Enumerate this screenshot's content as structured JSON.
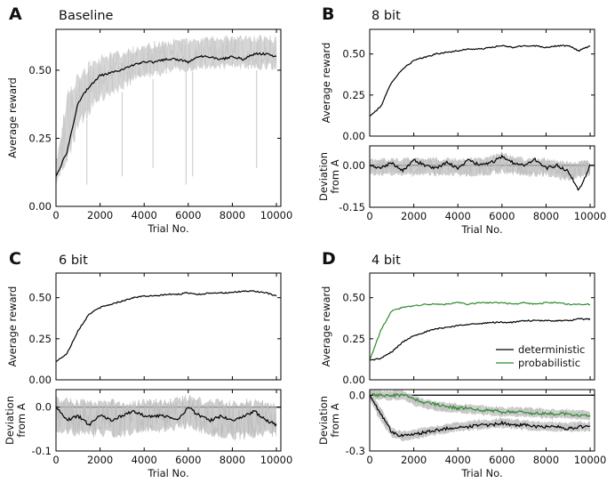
{
  "chart_data": [
    {
      "panel": "A",
      "title": "Baseline",
      "type": "line",
      "xlabel": "Trial No.",
      "xlim": [
        0,
        10200
      ],
      "xticks": [
        0,
        2000,
        4000,
        6000,
        8000,
        10000
      ],
      "plots": [
        {
          "role": "main",
          "ylabel": "Average reward",
          "ylim": [
            0.0,
            0.65
          ],
          "yticks": [
            "0.00",
            "0.25",
            "0.50"
          ],
          "series": [
            {
              "name": "individual runs (gray band)",
              "color": "#c8c8c8",
              "x": [
                0,
                500,
                1000,
                1500,
                2000,
                2500,
                3000,
                3500,
                4000,
                4500,
                5000,
                5500,
                6000,
                6500,
                7000,
                7500,
                8000,
                8500,
                9000,
                9500,
                10000
              ],
              "y_low": [
                0.08,
                0.14,
                0.27,
                0.33,
                0.38,
                0.4,
                0.42,
                0.45,
                0.46,
                0.47,
                0.48,
                0.49,
                0.49,
                0.5,
                0.5,
                0.5,
                0.5,
                0.5,
                0.5,
                0.5,
                0.5
              ],
              "y_high": [
                0.16,
                0.42,
                0.5,
                0.54,
                0.56,
                0.57,
                0.58,
                0.59,
                0.6,
                0.61,
                0.61,
                0.62,
                0.62,
                0.62,
                0.63,
                0.63,
                0.63,
                0.63,
                0.63,
                0.63,
                0.63
              ]
            },
            {
              "name": "mean",
              "color": "#000000",
              "x": [
                0,
                500,
                1000,
                1500,
                2000,
                2500,
                3000,
                3500,
                4000,
                4500,
                5000,
                5500,
                6000,
                6500,
                7000,
                7500,
                8000,
                8500,
                9000,
                9500,
                10000
              ],
              "y": [
                0.11,
                0.2,
                0.38,
                0.44,
                0.48,
                0.49,
                0.5,
                0.52,
                0.53,
                0.53,
                0.54,
                0.54,
                0.53,
                0.55,
                0.55,
                0.54,
                0.55,
                0.54,
                0.56,
                0.56,
                0.55
              ]
            }
          ]
        }
      ]
    },
    {
      "panel": "B",
      "title": "8 bit",
      "type": "line",
      "xlabel": "Trial No.",
      "xlim": [
        0,
        10200
      ],
      "xticks": [
        0,
        2000,
        4000,
        6000,
        8000,
        10000
      ],
      "plots": [
        {
          "role": "main",
          "ylabel": "Average reward",
          "ylim": [
            0.0,
            0.65
          ],
          "yticks": [
            "0.00",
            "0.25",
            "0.50"
          ],
          "series": [
            {
              "name": "8 bit",
              "color": "#000000",
              "x": [
                0,
                500,
                1000,
                1500,
                2000,
                2500,
                3000,
                3500,
                4000,
                4500,
                5000,
                5500,
                6000,
                6500,
                7000,
                7500,
                8000,
                8500,
                9000,
                9500,
                10000
              ],
              "y": [
                0.12,
                0.18,
                0.33,
                0.41,
                0.46,
                0.48,
                0.5,
                0.51,
                0.52,
                0.53,
                0.53,
                0.54,
                0.55,
                0.54,
                0.55,
                0.55,
                0.54,
                0.55,
                0.55,
                0.52,
                0.55
              ]
            }
          ]
        },
        {
          "role": "deviation",
          "ylabel": "Deviation\nfrom A",
          "ylim": [
            -0.15,
            0.07
          ],
          "yticks": [
            "0.00",
            "-0.15"
          ],
          "series": [
            {
              "name": "deviation band",
              "color": "#bdbdbd",
              "x": [
                0,
                1000,
                2000,
                3000,
                4000,
                5000,
                6000,
                7000,
                8000,
                9000,
                10000
              ],
              "y_low": [
                -0.04,
                -0.04,
                -0.04,
                -0.04,
                -0.04,
                -0.04,
                -0.03,
                -0.04,
                -0.04,
                -0.06,
                -0.04
              ],
              "y_high": [
                0.03,
                0.03,
                0.03,
                0.03,
                0.03,
                0.03,
                0.05,
                0.03,
                0.03,
                0.02,
                0.02
              ]
            },
            {
              "name": "deviation",
              "color": "#000000",
              "x": [
                0,
                500,
                1000,
                1500,
                2000,
                2500,
                3000,
                3500,
                4000,
                4500,
                5000,
                5500,
                6000,
                6500,
                7000,
                7500,
                8000,
                8500,
                9000,
                9500,
                10000
              ],
              "y": [
                0.0,
                -0.01,
                0.01,
                -0.02,
                0.02,
                0.0,
                -0.01,
                0.01,
                -0.01,
                0.02,
                0.0,
                0.01,
                0.03,
                0.01,
                0.0,
                0.02,
                -0.01,
                0.0,
                -0.02,
                -0.09,
                0.0
              ]
            }
          ]
        }
      ]
    },
    {
      "panel": "C",
      "title": "6 bit",
      "type": "line",
      "xlabel": "Trial No.",
      "xlim": [
        0,
        10200
      ],
      "xticks": [
        0,
        2000,
        4000,
        6000,
        8000,
        10000
      ],
      "plots": [
        {
          "role": "main",
          "ylabel": "Average reward",
          "ylim": [
            0.0,
            0.65
          ],
          "yticks": [
            "0.00",
            "0.25",
            "0.50"
          ],
          "series": [
            {
              "name": "6 bit",
              "color": "#000000",
              "x": [
                0,
                500,
                1000,
                1500,
                2000,
                2500,
                3000,
                3500,
                4000,
                4500,
                5000,
                5500,
                6000,
                6500,
                7000,
                7500,
                8000,
                8500,
                9000,
                9500,
                10000
              ],
              "y": [
                0.11,
                0.16,
                0.3,
                0.4,
                0.44,
                0.46,
                0.48,
                0.5,
                0.51,
                0.51,
                0.52,
                0.52,
                0.53,
                0.52,
                0.53,
                0.53,
                0.53,
                0.54,
                0.54,
                0.53,
                0.51
              ]
            }
          ]
        },
        {
          "role": "deviation",
          "ylabel": "Deviation\nfrom A",
          "ylim": [
            -0.1,
            0.04
          ],
          "yticks": [
            "0.0",
            "-0.1"
          ],
          "series": [
            {
              "name": "deviation band",
              "color": "#bdbdbd",
              "x": [
                0,
                1000,
                2000,
                3000,
                4000,
                5000,
                6000,
                7000,
                8000,
                9000,
                10000
              ],
              "y_low": [
                -0.06,
                -0.07,
                -0.07,
                -0.07,
                -0.06,
                -0.06,
                -0.05,
                -0.07,
                -0.08,
                -0.07,
                -0.07
              ],
              "y_high": [
                0.03,
                0.02,
                0.02,
                0.02,
                0.02,
                0.02,
                0.03,
                0.02,
                0.02,
                0.02,
                0.01
              ]
            },
            {
              "name": "deviation",
              "color": "#000000",
              "x": [
                0,
                500,
                1000,
                1500,
                2000,
                2500,
                3000,
                3500,
                4000,
                4500,
                5000,
                5500,
                6000,
                6500,
                7000,
                7500,
                8000,
                8500,
                9000,
                9500,
                10000
              ],
              "y": [
                0.0,
                -0.03,
                -0.02,
                -0.04,
                -0.02,
                -0.03,
                -0.02,
                -0.01,
                -0.02,
                -0.02,
                -0.02,
                -0.03,
                0.0,
                -0.02,
                -0.03,
                -0.02,
                -0.03,
                -0.02,
                -0.01,
                -0.03,
                -0.04
              ]
            }
          ]
        }
      ]
    },
    {
      "panel": "D",
      "title": "4 bit",
      "type": "line",
      "xlabel": "Trial No.",
      "xlim": [
        0,
        10200
      ],
      "xticks": [
        0,
        2000,
        4000,
        6000,
        8000,
        10000
      ],
      "legend": {
        "placement": "lower-right",
        "entries": [
          {
            "label": "deterministic",
            "color": "#000000"
          },
          {
            "label": "probabilistic",
            "color": "#2e8b2e"
          }
        ]
      },
      "plots": [
        {
          "role": "main",
          "ylabel": "Average reward",
          "ylim": [
            0.0,
            0.65
          ],
          "yticks": [
            "0.00",
            "0.25",
            "0.50"
          ],
          "series": [
            {
              "name": "deterministic",
              "color": "#000000",
              "x": [
                0,
                500,
                1000,
                1500,
                2000,
                2500,
                3000,
                3500,
                4000,
                4500,
                5000,
                5500,
                6000,
                6500,
                7000,
                7500,
                8000,
                8500,
                9000,
                9500,
                10000
              ],
              "y": [
                0.12,
                0.13,
                0.17,
                0.23,
                0.27,
                0.29,
                0.31,
                0.32,
                0.33,
                0.34,
                0.34,
                0.35,
                0.35,
                0.35,
                0.36,
                0.36,
                0.36,
                0.36,
                0.36,
                0.37,
                0.37
              ]
            },
            {
              "name": "probabilistic",
              "color": "#2e8b2e",
              "x": [
                0,
                500,
                1000,
                1500,
                2000,
                2500,
                3000,
                3500,
                4000,
                4500,
                5000,
                5500,
                6000,
                6500,
                7000,
                7500,
                8000,
                8500,
                9000,
                9500,
                10000
              ],
              "y": [
                0.12,
                0.3,
                0.42,
                0.44,
                0.45,
                0.46,
                0.46,
                0.46,
                0.47,
                0.46,
                0.47,
                0.47,
                0.47,
                0.46,
                0.47,
                0.46,
                0.47,
                0.47,
                0.46,
                0.46,
                0.46
              ]
            }
          ]
        },
        {
          "role": "deviation",
          "ylabel": "Deviation\nfrom A",
          "ylim": [
            -0.3,
            0.03
          ],
          "yticks": [
            "0.0",
            "-0.3"
          ],
          "series": [
            {
              "name": "deterministic band",
              "color": "#bdbdbd",
              "x": [
                0,
                500,
                1000,
                1500,
                2000,
                3000,
                4000,
                5000,
                6000,
                7000,
                8000,
                9000,
                10000
              ],
              "y_low": [
                -0.03,
                -0.15,
                -0.23,
                -0.25,
                -0.24,
                -0.22,
                -0.2,
                -0.19,
                -0.18,
                -0.19,
                -0.2,
                -0.2,
                -0.2
              ],
              "y_high": [
                0.02,
                -0.06,
                -0.17,
                -0.19,
                -0.18,
                -0.16,
                -0.14,
                -0.13,
                -0.12,
                -0.13,
                -0.14,
                -0.14,
                -0.14
              ]
            },
            {
              "name": "probabilistic band",
              "color": "#bdbdbd",
              "x": [
                0,
                500,
                1000,
                1500,
                2000,
                3000,
                4000,
                5000,
                6000,
                7000,
                8000,
                9000,
                10000
              ],
              "y_low": [
                -0.02,
                -0.03,
                -0.03,
                -0.03,
                -0.06,
                -0.09,
                -0.1,
                -0.11,
                -0.12,
                -0.12,
                -0.13,
                -0.13,
                -0.14
              ],
              "y_high": [
                0.03,
                0.03,
                0.03,
                0.03,
                0.0,
                -0.03,
                -0.04,
                -0.05,
                -0.06,
                -0.06,
                -0.07,
                -0.07,
                -0.08
              ]
            },
            {
              "name": "deterministic",
              "color": "#000000",
              "x": [
                0,
                500,
                1000,
                1500,
                2000,
                2500,
                3000,
                3500,
                4000,
                4500,
                5000,
                5500,
                6000,
                6500,
                7000,
                7500,
                8000,
                8500,
                9000,
                9500,
                10000
              ],
              "y": [
                0.0,
                -0.1,
                -0.2,
                -0.22,
                -0.21,
                -0.2,
                -0.19,
                -0.18,
                -0.17,
                -0.17,
                -0.16,
                -0.16,
                -0.15,
                -0.16,
                -0.16,
                -0.17,
                -0.17,
                -0.17,
                -0.18,
                -0.17,
                -0.17
              ]
            },
            {
              "name": "probabilistic",
              "color": "#2e8b2e",
              "x": [
                0,
                500,
                1000,
                1500,
                2000,
                2500,
                3000,
                3500,
                4000,
                4500,
                5000,
                5500,
                6000,
                6500,
                7000,
                7500,
                8000,
                8500,
                9000,
                9500,
                10000
              ],
              "y": [
                0.0,
                0.0,
                0.0,
                0.0,
                -0.02,
                -0.04,
                -0.05,
                -0.06,
                -0.07,
                -0.07,
                -0.08,
                -0.08,
                -0.09,
                -0.09,
                -0.09,
                -0.1,
                -0.1,
                -0.1,
                -0.1,
                -0.11,
                -0.11
              ]
            }
          ]
        }
      ]
    }
  ]
}
